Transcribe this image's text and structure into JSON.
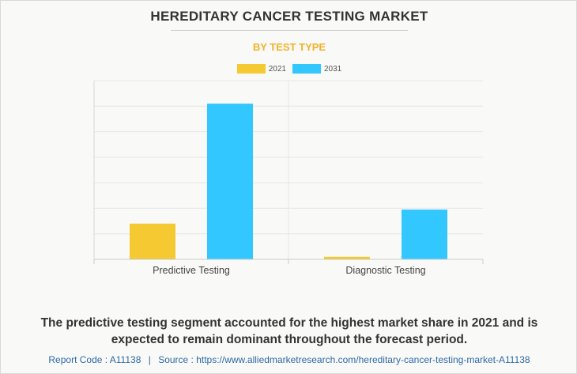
{
  "header": {
    "title": "HEREDITARY CANCER TESTING MARKET",
    "subtitle": "BY TEST TYPE"
  },
  "colors": {
    "series_2021": "#f5c932",
    "series_2031": "#33c7ff",
    "subtitle": "#f2b227",
    "footer": "#2e6aa8"
  },
  "chart_data": {
    "type": "bar",
    "categories": [
      "Predictive Testing",
      "Diagnostic Testing"
    ],
    "series": [
      {
        "name": "2021",
        "values": [
          1.4,
          0.1
        ]
      },
      {
        "name": "2031",
        "values": [
          6.1,
          1.95
        ]
      }
    ],
    "ylim": [
      0,
      7
    ],
    "grid": true,
    "legend": "top-center",
    "xlabel": "",
    "ylabel": ""
  },
  "caption": "The predictive testing segment accounted for the highest market share in 2021 and is expected to remain dominant throughout the forecast period.",
  "footer": {
    "report_code": "Report Code : A11138",
    "separator": "|",
    "source": "Source : https://www.alliedmarketresearch.com/hereditary-cancer-testing-market-A11138"
  }
}
